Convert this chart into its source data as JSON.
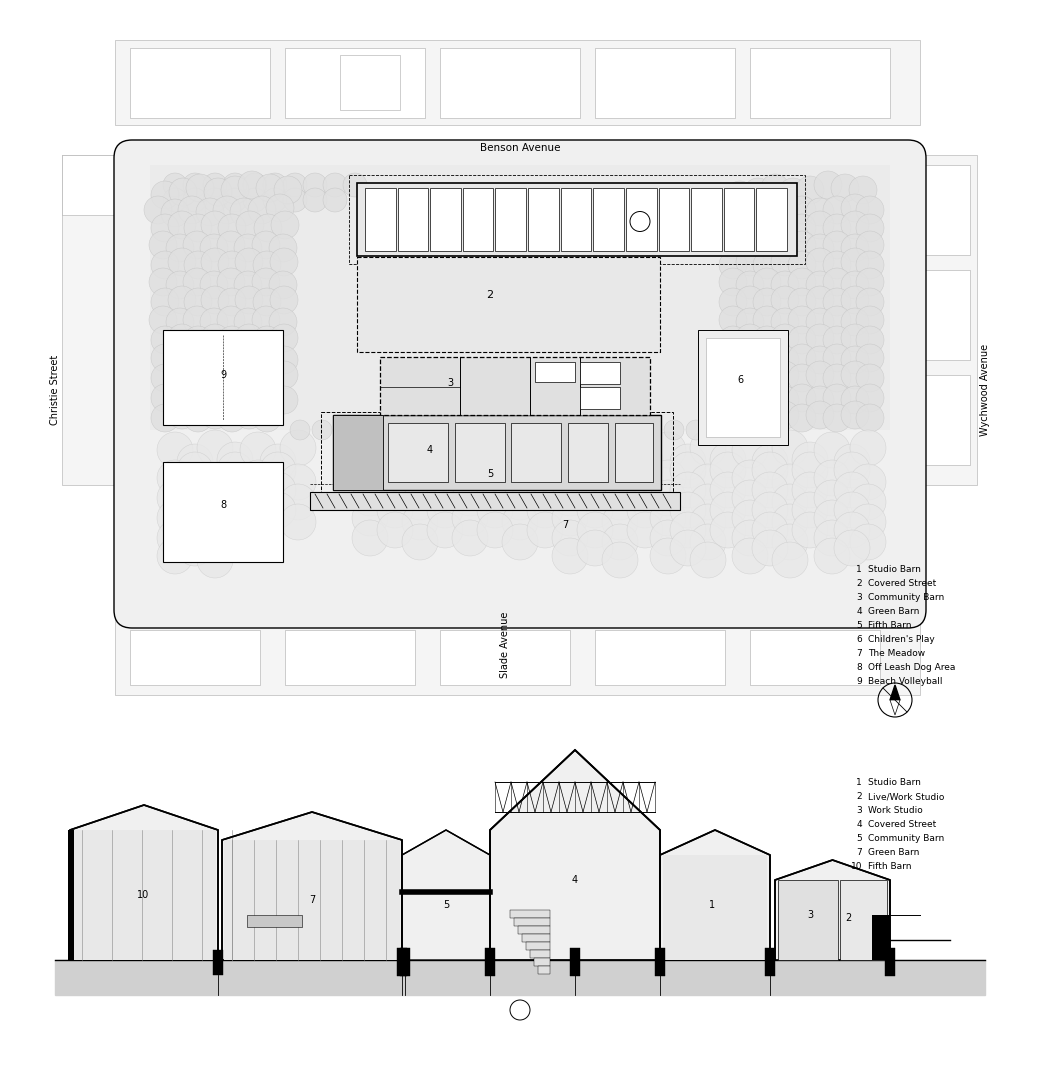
{
  "background_color": "#ffffff",
  "legend_top": [
    [
      "1",
      "Studio Barn"
    ],
    [
      "2",
      "Covered Street"
    ],
    [
      "3",
      "Community Barn"
    ],
    [
      "4",
      "Green Barn"
    ],
    [
      "5",
      "Fifth Barn"
    ],
    [
      "6",
      "Children's Play"
    ],
    [
      "7",
      "The Meadow"
    ],
    [
      "8",
      "Off Leash Dog Area"
    ],
    [
      "9",
      "Beach Volleyball"
    ]
  ],
  "legend_bottom": [
    [
      "1",
      "Studio Barn"
    ],
    [
      "2",
      "Live/Work Studio"
    ],
    [
      "3",
      "Work Studio"
    ],
    [
      "4",
      "Covered Street"
    ],
    [
      "5",
      "Community Barn"
    ],
    [
      "7",
      "Green Barn"
    ],
    [
      "10",
      "Fifth Barn"
    ]
  ],
  "street_labels": {
    "benson": "Benson Avenue",
    "christie": "Christie Street",
    "wychwood": "Wychwood Avenue",
    "slade": "Slade Avenue"
  },
  "font_size_legend": 6.5,
  "font_size_numbers": 7,
  "font_size_streets": 7,
  "line_color": "#000000",
  "light_gray": "#d0d0d0",
  "medium_gray": "#b0b0b0",
  "fill_light": "#eeeeee",
  "fill_mid": "#e0e0e0",
  "fill_dark": "#c8c8c8"
}
